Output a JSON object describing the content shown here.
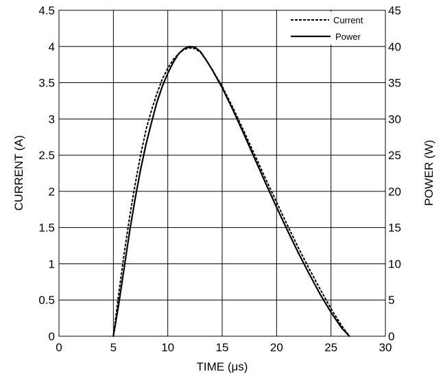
{
  "chart_data": {
    "type": "line",
    "title": "",
    "xlabel": "TIME (μs)",
    "ylabel_left": "CURRENT (A)",
    "ylabel_right": "POWER (W)",
    "xlim": [
      0,
      30
    ],
    "ylim_left": [
      0,
      4.5
    ],
    "ylim_right": [
      0,
      45
    ],
    "xticks": [
      "0",
      "5",
      "10",
      "15",
      "20",
      "25",
      "30"
    ],
    "yticks_left": [
      "0",
      "0.5",
      "1",
      "1.5",
      "2",
      "2.5",
      "3",
      "3.5",
      "4",
      "4.5"
    ],
    "yticks_right": [
      "0",
      "5",
      "10",
      "15",
      "20",
      "25",
      "30",
      "35",
      "40",
      "45"
    ],
    "grid": true,
    "legend_position": "top-right",
    "series": [
      {
        "name": "Current",
        "axis": "left",
        "style": "dashed",
        "color": "#000000",
        "x": [
          5.0,
          5.5,
          6.0,
          6.5,
          7.0,
          7.5,
          8.0,
          8.5,
          9.0,
          9.5,
          10.0,
          10.5,
          11.0,
          11.5,
          12.0,
          12.5,
          13.0,
          13.5,
          14.0,
          15.0,
          16.0,
          17.0,
          18.0,
          19.0,
          20.0,
          21.0,
          22.0,
          23.0,
          24.0,
          25.0,
          26.0,
          26.7
        ],
        "values": [
          0.0,
          0.6,
          1.15,
          1.65,
          2.1,
          2.5,
          2.85,
          3.12,
          3.35,
          3.55,
          3.7,
          3.82,
          3.9,
          3.96,
          3.98,
          3.97,
          3.92,
          3.82,
          3.7,
          3.45,
          3.15,
          2.83,
          2.5,
          2.17,
          1.85,
          1.53,
          1.22,
          0.93,
          0.65,
          0.38,
          0.14,
          0.0
        ]
      },
      {
        "name": "Power",
        "axis": "right",
        "style": "solid",
        "color": "#000000",
        "x": [
          5.0,
          5.5,
          6.0,
          6.5,
          7.0,
          7.5,
          8.0,
          8.5,
          9.0,
          9.5,
          10.0,
          10.5,
          11.0,
          11.5,
          12.0,
          12.5,
          13.0,
          13.5,
          14.0,
          15.0,
          16.0,
          17.0,
          18.0,
          19.0,
          20.0,
          21.0,
          22.0,
          23.0,
          24.0,
          25.0,
          26.0,
          26.7
        ],
        "values": [
          0.0,
          4.5,
          9.5,
          14.5,
          19.0,
          23.0,
          26.5,
          29.5,
          32.3,
          34.5,
          36.3,
          37.8,
          39.0,
          39.7,
          40.0,
          39.9,
          39.3,
          38.2,
          37.0,
          34.3,
          31.2,
          27.9,
          24.5,
          21.1,
          17.8,
          14.6,
          11.5,
          8.6,
          5.8,
          3.3,
          1.1,
          0.0
        ]
      }
    ]
  }
}
